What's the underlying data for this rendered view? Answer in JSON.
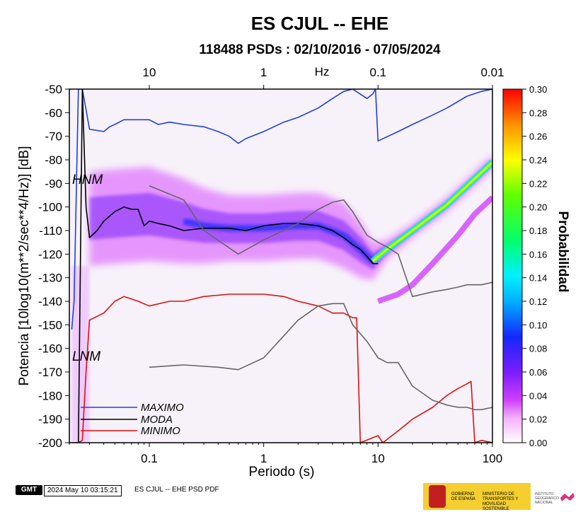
{
  "chart_data": {
    "type": "heatmap",
    "title": "ES CJUL -- EHE",
    "subtitle": "118488 PSDs : 02/10/2016 - 07/05/2024",
    "xlabel": "Periodo (s)",
    "ylabel": "Potencia [10log10(m**2/sec**4/Hz)] [dB]",
    "top_axis_label": "Hz",
    "x_scale": "log",
    "xlim": [
      0.02,
      100
    ],
    "ylim": [
      -200,
      -50
    ],
    "x_ticks": [
      0.1,
      1,
      10,
      100
    ],
    "x_tick_labels": [
      "0.1",
      "1",
      "10",
      "100"
    ],
    "top_ticks": [
      10,
      1,
      0.1,
      0.01
    ],
    "top_tick_labels": [
      "10",
      "1",
      "0.1",
      "0.01"
    ],
    "y_ticks": [
      -50,
      -60,
      -70,
      -80,
      -90,
      -100,
      -110,
      -120,
      -130,
      -140,
      -150,
      -160,
      -170,
      -180,
      -190,
      -200
    ],
    "colorbar": {
      "label": "Probabilidad",
      "range": [
        0.0,
        0.3
      ],
      "ticks": [
        "0.30",
        "0.28",
        "0.26",
        "0.24",
        "0.22",
        "0.20",
        "0.18",
        "0.16",
        "0.14",
        "0.12",
        "0.10",
        "0.08",
        "0.06",
        "0.04",
        "0.02",
        "0.00"
      ]
    },
    "model_labels": {
      "high": "HNM",
      "low": "LNM"
    },
    "density_ridge": {
      "period": [
        0.03,
        0.05,
        0.1,
        0.2,
        0.3,
        0.5,
        1,
        2,
        3,
        5,
        7,
        9,
        12,
        20,
        40,
        70,
        100
      ],
      "power": [
        -105,
        -104,
        -103,
        -106,
        -108,
        -109,
        -109,
        -108,
        -108,
        -112,
        -118,
        -123,
        -118,
        -110,
        -99,
        -88,
        -81
      ],
      "width_db": [
        20,
        20,
        20,
        18,
        16,
        14,
        14,
        14,
        14,
        14,
        12,
        8,
        4,
        3,
        3,
        3,
        3
      ]
    },
    "secondary_band": {
      "period": [
        10,
        15,
        20,
        30,
        50,
        70,
        100
      ],
      "power": [
        -140,
        -137,
        -133,
        -124,
        -112,
        -103,
        -96
      ]
    },
    "series": [
      {
        "name": "MAXIMO",
        "color": "#1f3fe0",
        "x": [
          0.021,
          0.022,
          0.024,
          0.026,
          0.03,
          0.04,
          0.045,
          0.05,
          0.06,
          0.08,
          0.1,
          0.12,
          0.15,
          0.2,
          0.3,
          0.4,
          0.5,
          0.6,
          0.7,
          1,
          1.5,
          2,
          3,
          4,
          5,
          6,
          8,
          9,
          9.5,
          10,
          15,
          20,
          30,
          40,
          60,
          80,
          100
        ],
        "y": [
          -152,
          -140,
          -50,
          -50,
          -67,
          -68,
          -66,
          -65,
          -63,
          -63,
          -63,
          -65,
          -64,
          -65,
          -66,
          -68,
          -70,
          -73,
          -71,
          -68,
          -64,
          -62,
          -58,
          -54,
          -51,
          -50,
          -54,
          -52,
          -50,
          -72,
          -68,
          -65,
          -61,
          -58,
          -53,
          -51,
          -50
        ]
      },
      {
        "name": "MODA",
        "color": "#000000",
        "x": [
          0.022,
          0.024,
          0.026,
          0.028,
          0.03,
          0.035,
          0.04,
          0.05,
          0.06,
          0.07,
          0.08,
          0.09,
          0.1,
          0.12,
          0.15,
          0.2,
          0.3,
          0.4,
          0.5,
          0.7,
          1,
          1.5,
          2,
          3,
          4,
          5,
          6,
          7,
          8,
          9,
          10
        ],
        "y": [
          -200,
          -200,
          -50,
          -100,
          -113,
          -110,
          -106,
          -102,
          -100,
          -101,
          -101,
          -108,
          -106,
          -107,
          -108,
          -110,
          -109,
          -109,
          -109,
          -110,
          -108,
          -107,
          -107,
          -108,
          -110,
          -113,
          -116,
          -118,
          -121,
          -124,
          -124
        ]
      },
      {
        "name": "MINIMO",
        "color": "#e01010",
        "x": [
          0.021,
          0.022,
          0.024,
          0.026,
          0.028,
          0.03,
          0.04,
          0.05,
          0.06,
          0.08,
          0.1,
          0.15,
          0.2,
          0.3,
          0.5,
          1,
          1.5,
          2,
          3,
          4,
          5,
          6,
          6.5,
          7,
          10,
          11,
          15,
          20,
          30,
          40,
          50,
          60,
          65,
          70,
          80,
          100
        ],
        "y": [
          -200,
          -200,
          -200,
          -199,
          -170,
          -148,
          -145,
          -140,
          -138,
          -140,
          -142,
          -140,
          -140,
          -138,
          -137,
          -137,
          -138,
          -140,
          -142,
          -145,
          -145,
          -147,
          -147,
          -200,
          -197,
          -200,
          -195,
          -190,
          -185,
          -180,
          -177,
          -175,
          -174,
          -200,
          -199,
          -200
        ]
      },
      {
        "name": "",
        "color": "#666666",
        "x": [
          0.1,
          0.2,
          0.3,
          0.6,
          1,
          2,
          3,
          4,
          5,
          6,
          8,
          10,
          12,
          15,
          20,
          30,
          40,
          50,
          60,
          70,
          80,
          100
        ],
        "y": [
          -91,
          -97,
          -110,
          -120,
          -114,
          -107,
          -101,
          -98,
          -97,
          -102,
          -112,
          -115,
          -117,
          -120,
          -138,
          -136,
          -135,
          -134,
          -133,
          -133,
          -133,
          -132
        ]
      },
      {
        "name": "",
        "color": "#666666",
        "x": [
          0.1,
          0.2,
          0.4,
          0.6,
          1,
          2,
          3,
          4,
          5,
          6,
          8,
          10,
          12,
          15,
          20,
          30,
          40,
          50,
          60,
          70,
          80,
          100
        ],
        "y": [
          -168,
          -167,
          -168,
          -169,
          -164,
          -148,
          -142,
          -141,
          -141,
          -150,
          -157,
          -164,
          -166,
          -166,
          -176,
          -182,
          -184,
          -185,
          -185,
          -186,
          -186,
          -185
        ]
      }
    ]
  },
  "footer": {
    "logo": "GMT",
    "timestamp": "2024 May 10 03:15:21",
    "caption": "ES CJUL -- EHE PSD PDF",
    "gov_line1": "GOBIERNO DE ESPAÑA",
    "gov_line2": "MINISTERIO DE TRANSPORTES Y MOVILIDAD SOSTENIBLE",
    "ign_text": "INSTITUTO GEOGRÁFICO NACIONAL",
    "ign_logo_name": "ign-logo",
    "colors": {
      "gov_yellow": "#f5cf2f",
      "gov_red": "#c21f1f"
    }
  }
}
